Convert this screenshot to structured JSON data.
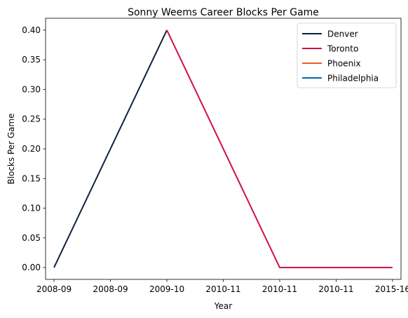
{
  "chart_data": {
    "type": "line",
    "title": "Sonny Weems Career Blocks Per Game",
    "xlabel": "Year",
    "ylabel": "Blocks Per Game",
    "x_tick_labels": [
      "2008-09",
      "2008-09",
      "2009-10",
      "2010-11",
      "2010-11",
      "2010-11",
      "2015-16"
    ],
    "x_range": [
      -0.15,
      6.15
    ],
    "ylim": [
      -0.02,
      0.42
    ],
    "y_ticks": [
      0.0,
      0.05,
      0.1,
      0.15,
      0.2,
      0.25,
      0.3,
      0.35,
      0.4
    ],
    "y_tick_labels": [
      "0.00",
      "0.05",
      "0.10",
      "0.15",
      "0.20",
      "0.25",
      "0.30",
      "0.35",
      "0.40"
    ],
    "grid": false,
    "legend_position": "top-right",
    "series": [
      {
        "name": "Denver",
        "color": "#0e2240",
        "x": [
          0,
          2
        ],
        "y": [
          0.0,
          0.4
        ]
      },
      {
        "name": "Toronto",
        "color": "#ce1141",
        "x": [
          2,
          4,
          6
        ],
        "y": [
          0.4,
          0.0,
          0.0
        ]
      },
      {
        "name": "Phoenix",
        "color": "#e56020",
        "x": [],
        "y": []
      },
      {
        "name": "Philadelphia",
        "color": "#006bb6",
        "x": [],
        "y": []
      }
    ]
  }
}
